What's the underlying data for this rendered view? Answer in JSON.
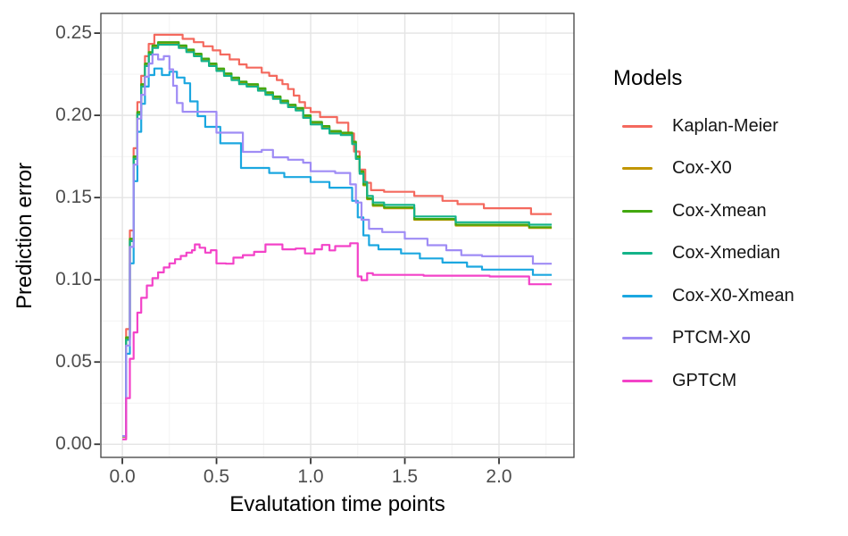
{
  "figure": {
    "background": "#FFFFFF",
    "panel_border_color": "#404040",
    "grid_major_color": "#E4E4E4",
    "grid_minor_color": "#F1F1F1",
    "tick_mark_color": "#333333",
    "tick_label_color": "#4D4D4D",
    "axis_title_color": "#000000"
  },
  "chart_data": {
    "type": "line",
    "step": true,
    "title": "",
    "xlabel": "Evalutation time points",
    "ylabel": "Prediction error",
    "legend_title": "Models",
    "legend_position": "right",
    "xlim": [
      -0.114,
      2.398
    ],
    "ylim": [
      -0.008,
      0.262
    ],
    "x_ticks": {
      "values": [
        0,
        0.5,
        1.0,
        1.5,
        2.0
      ],
      "labels": [
        "0.0",
        "0.5",
        "1.0",
        "1.5",
        "2.0"
      ]
    },
    "y_ticks": {
      "values": [
        0,
        0.05,
        0.1,
        0.15,
        0.2,
        0.25
      ],
      "labels": [
        "0.00",
        "0.05",
        "0.10",
        "0.15",
        "0.20",
        "0.25"
      ]
    },
    "x_minor": [
      0.25,
      0.75,
      1.25,
      1.75,
      2.25
    ],
    "y_minor": [
      0.025,
      0.075,
      0.125,
      0.175,
      0.225
    ],
    "series": [
      {
        "name": "Kaplan-Meier",
        "color": "#F4695E",
        "points": [
          [
            0,
            0.005
          ],
          [
            0.02,
            0.07
          ],
          [
            0.04,
            0.13
          ],
          [
            0.06,
            0.18
          ],
          [
            0.08,
            0.208
          ],
          [
            0.1,
            0.224
          ],
          [
            0.12,
            0.236
          ],
          [
            0.14,
            0.2435
          ],
          [
            0.17,
            0.249
          ],
          [
            0.32,
            0.2465
          ],
          [
            0.38,
            0.2445
          ],
          [
            0.43,
            0.242
          ],
          [
            0.48,
            0.2395
          ],
          [
            0.52,
            0.237
          ],
          [
            0.57,
            0.234
          ],
          [
            0.62,
            0.231
          ],
          [
            0.66,
            0.229
          ],
          [
            0.74,
            0.226
          ],
          [
            0.78,
            0.224
          ],
          [
            0.82,
            0.2215
          ],
          [
            0.85,
            0.219
          ],
          [
            0.88,
            0.216
          ],
          [
            0.91,
            0.212
          ],
          [
            0.94,
            0.208
          ],
          [
            0.97,
            0.2045
          ],
          [
            1.0,
            0.202
          ],
          [
            1.05,
            0.199
          ],
          [
            1.14,
            0.1955
          ],
          [
            1.2,
            0.189
          ],
          [
            1.23,
            0.178
          ],
          [
            1.26,
            0.167
          ],
          [
            1.29,
            0.159
          ],
          [
            1.32,
            0.1545
          ],
          [
            1.39,
            0.1535
          ],
          [
            1.55,
            0.151
          ],
          [
            1.7,
            0.148
          ],
          [
            1.78,
            0.146
          ],
          [
            1.92,
            0.1435
          ],
          [
            2.17,
            0.14
          ],
          [
            2.28,
            0.14
          ]
        ]
      },
      {
        "name": "Cox-X0",
        "color": "#C19601",
        "points": [
          [
            0,
            0.0045
          ],
          [
            0.02,
            0.0645
          ],
          [
            0.04,
            0.1245
          ],
          [
            0.06,
            0.1745
          ],
          [
            0.08,
            0.2015
          ],
          [
            0.1,
            0.2185
          ],
          [
            0.12,
            0.231
          ],
          [
            0.14,
            0.238
          ],
          [
            0.16,
            0.242
          ],
          [
            0.19,
            0.244
          ],
          [
            0.3,
            0.242
          ],
          [
            0.34,
            0.2395
          ],
          [
            0.38,
            0.237
          ],
          [
            0.42,
            0.234
          ],
          [
            0.46,
            0.231
          ],
          [
            0.5,
            0.228
          ],
          [
            0.54,
            0.225
          ],
          [
            0.58,
            0.2225
          ],
          [
            0.62,
            0.22
          ],
          [
            0.66,
            0.2185
          ],
          [
            0.72,
            0.216
          ],
          [
            0.76,
            0.2135
          ],
          [
            0.8,
            0.211
          ],
          [
            0.84,
            0.2085
          ],
          [
            0.88,
            0.206
          ],
          [
            0.92,
            0.204
          ],
          [
            0.96,
            0.1995
          ],
          [
            1.0,
            0.1955
          ],
          [
            1.06,
            0.193
          ],
          [
            1.1,
            0.19
          ],
          [
            1.16,
            0.189
          ],
          [
            1.22,
            0.1835
          ],
          [
            1.24,
            0.1745
          ],
          [
            1.26,
            0.1655
          ],
          [
            1.28,
            0.1575
          ],
          [
            1.3,
            0.149
          ],
          [
            1.33,
            0.145
          ],
          [
            1.39,
            0.1435
          ],
          [
            1.55,
            0.1365
          ],
          [
            1.77,
            0.133
          ],
          [
            2.16,
            0.1315
          ],
          [
            2.28,
            0.1315
          ]
        ]
      },
      {
        "name": "Cox-Xmean",
        "color": "#42A80F",
        "points": [
          [
            0,
            0.005
          ],
          [
            0.02,
            0.065
          ],
          [
            0.04,
            0.125
          ],
          [
            0.06,
            0.175
          ],
          [
            0.08,
            0.202
          ],
          [
            0.1,
            0.219
          ],
          [
            0.12,
            0.2315
          ],
          [
            0.14,
            0.2385
          ],
          [
            0.16,
            0.2425
          ],
          [
            0.19,
            0.2445
          ],
          [
            0.3,
            0.2425
          ],
          [
            0.34,
            0.24
          ],
          [
            0.38,
            0.2375
          ],
          [
            0.42,
            0.2345
          ],
          [
            0.46,
            0.2315
          ],
          [
            0.5,
            0.2285
          ],
          [
            0.54,
            0.2255
          ],
          [
            0.58,
            0.223
          ],
          [
            0.62,
            0.2205
          ],
          [
            0.66,
            0.219
          ],
          [
            0.72,
            0.2165
          ],
          [
            0.76,
            0.214
          ],
          [
            0.8,
            0.2115
          ],
          [
            0.84,
            0.209
          ],
          [
            0.88,
            0.2065
          ],
          [
            0.92,
            0.2045
          ],
          [
            0.96,
            0.2
          ],
          [
            1.0,
            0.196
          ],
          [
            1.06,
            0.1935
          ],
          [
            1.1,
            0.1905
          ],
          [
            1.16,
            0.1895
          ],
          [
            1.22,
            0.184
          ],
          [
            1.24,
            0.175
          ],
          [
            1.26,
            0.166
          ],
          [
            1.28,
            0.158
          ],
          [
            1.3,
            0.1495
          ],
          [
            1.33,
            0.1455
          ],
          [
            1.39,
            0.144
          ],
          [
            1.55,
            0.137
          ],
          [
            1.77,
            0.1335
          ],
          [
            2.16,
            0.132
          ],
          [
            2.28,
            0.132
          ]
        ]
      },
      {
        "name": "Cox-Xmedian",
        "color": "#14B389",
        "points": [
          [
            0,
            0.005
          ],
          [
            0.02,
            0.0635
          ],
          [
            0.04,
            0.1235
          ],
          [
            0.06,
            0.1735
          ],
          [
            0.08,
            0.2005
          ],
          [
            0.1,
            0.2175
          ],
          [
            0.12,
            0.23
          ],
          [
            0.14,
            0.237
          ],
          [
            0.16,
            0.241
          ],
          [
            0.19,
            0.243
          ],
          [
            0.3,
            0.241
          ],
          [
            0.34,
            0.2385
          ],
          [
            0.38,
            0.236
          ],
          [
            0.42,
            0.233
          ],
          [
            0.46,
            0.23
          ],
          [
            0.5,
            0.227
          ],
          [
            0.54,
            0.224
          ],
          [
            0.58,
            0.2215
          ],
          [
            0.62,
            0.219
          ],
          [
            0.66,
            0.2175
          ],
          [
            0.72,
            0.215
          ],
          [
            0.76,
            0.2125
          ],
          [
            0.8,
            0.21
          ],
          [
            0.84,
            0.2075
          ],
          [
            0.88,
            0.205
          ],
          [
            0.92,
            0.203
          ],
          [
            0.96,
            0.1985
          ],
          [
            1.0,
            0.1945
          ],
          [
            1.06,
            0.192
          ],
          [
            1.1,
            0.189
          ],
          [
            1.16,
            0.188
          ],
          [
            1.22,
            0.1825
          ],
          [
            1.24,
            0.1735
          ],
          [
            1.26,
            0.1645
          ],
          [
            1.28,
            0.1595
          ],
          [
            1.3,
            0.151
          ],
          [
            1.33,
            0.147
          ],
          [
            1.39,
            0.1455
          ],
          [
            1.55,
            0.1385
          ],
          [
            1.77,
            0.135
          ],
          [
            2.16,
            0.1335
          ],
          [
            2.28,
            0.1335
          ]
        ]
      },
      {
        "name": "Cox-X0-Xmean",
        "color": "#1BA7E0",
        "points": [
          [
            0,
            0.005
          ],
          [
            0.02,
            0.055
          ],
          [
            0.04,
            0.11
          ],
          [
            0.06,
            0.16
          ],
          [
            0.08,
            0.19
          ],
          [
            0.1,
            0.207
          ],
          [
            0.12,
            0.2175
          ],
          [
            0.14,
            0.2245
          ],
          [
            0.17,
            0.2285
          ],
          [
            0.21,
            0.2245
          ],
          [
            0.25,
            0.2265
          ],
          [
            0.29,
            0.223
          ],
          [
            0.33,
            0.2195
          ],
          [
            0.36,
            0.2085
          ],
          [
            0.4,
            0.1995
          ],
          [
            0.44,
            0.193
          ],
          [
            0.52,
            0.183
          ],
          [
            0.63,
            0.168
          ],
          [
            0.78,
            0.165
          ],
          [
            0.86,
            0.1625
          ],
          [
            1.0,
            0.1595
          ],
          [
            1.1,
            0.156
          ],
          [
            1.22,
            0.148
          ],
          [
            1.25,
            0.138
          ],
          [
            1.28,
            0.127
          ],
          [
            1.31,
            0.121
          ],
          [
            1.36,
            0.1185
          ],
          [
            1.48,
            0.116
          ],
          [
            1.58,
            0.113
          ],
          [
            1.7,
            0.1105
          ],
          [
            1.83,
            0.108
          ],
          [
            1.91,
            0.1062
          ],
          [
            2.18,
            0.103
          ],
          [
            2.28,
            0.103
          ]
        ]
      },
      {
        "name": "PTCM-X0",
        "color": "#9F8CF5",
        "points": [
          [
            0,
            0.005
          ],
          [
            0.02,
            0.06
          ],
          [
            0.04,
            0.12
          ],
          [
            0.06,
            0.17
          ],
          [
            0.08,
            0.198
          ],
          [
            0.1,
            0.2125
          ],
          [
            0.12,
            0.2235
          ],
          [
            0.14,
            0.2315
          ],
          [
            0.16,
            0.237
          ],
          [
            0.19,
            0.234
          ],
          [
            0.22,
            0.236
          ],
          [
            0.25,
            0.228
          ],
          [
            0.27,
            0.218
          ],
          [
            0.29,
            0.2075
          ],
          [
            0.32,
            0.2022
          ],
          [
            0.5,
            0.1895
          ],
          [
            0.64,
            0.1778
          ],
          [
            0.74,
            0.179
          ],
          [
            0.8,
            0.1745
          ],
          [
            0.88,
            0.173
          ],
          [
            0.96,
            0.1712
          ],
          [
            1.0,
            0.166
          ],
          [
            1.13,
            0.165
          ],
          [
            1.21,
            0.158
          ],
          [
            1.24,
            0.147
          ],
          [
            1.27,
            0.1365
          ],
          [
            1.31,
            0.131
          ],
          [
            1.38,
            0.129
          ],
          [
            1.5,
            0.125
          ],
          [
            1.62,
            0.121
          ],
          [
            1.72,
            0.118
          ],
          [
            1.8,
            0.115
          ],
          [
            1.91,
            0.1143
          ],
          [
            2.18,
            0.1098
          ],
          [
            2.28,
            0.1098
          ]
        ]
      },
      {
        "name": "GPTCM",
        "color": "#F342C8",
        "points": [
          [
            0,
            0.003
          ],
          [
            0.02,
            0.028
          ],
          [
            0.04,
            0.052
          ],
          [
            0.06,
            0.068
          ],
          [
            0.08,
            0.08
          ],
          [
            0.1,
            0.089
          ],
          [
            0.13,
            0.0965
          ],
          [
            0.16,
            0.101
          ],
          [
            0.19,
            0.1045
          ],
          [
            0.22,
            0.1075
          ],
          [
            0.25,
            0.11
          ],
          [
            0.28,
            0.1125
          ],
          [
            0.31,
            0.1145
          ],
          [
            0.34,
            0.1165
          ],
          [
            0.37,
            0.118
          ],
          [
            0.385,
            0.1215
          ],
          [
            0.41,
            0.1195
          ],
          [
            0.44,
            0.1165
          ],
          [
            0.47,
            0.118
          ],
          [
            0.5,
            0.11
          ],
          [
            0.55,
            0.1098
          ],
          [
            0.59,
            0.1135
          ],
          [
            0.64,
            0.115
          ],
          [
            0.7,
            0.117
          ],
          [
            0.76,
            0.1215
          ],
          [
            0.85,
            0.1185
          ],
          [
            0.92,
            0.119
          ],
          [
            0.97,
            0.116
          ],
          [
            1.02,
            0.1185
          ],
          [
            1.06,
            0.1212
          ],
          [
            1.1,
            0.1179
          ],
          [
            1.13,
            0.1205
          ],
          [
            1.21,
            0.1222
          ],
          [
            1.25,
            0.102
          ],
          [
            1.27,
            0.0998
          ],
          [
            1.3,
            0.104
          ],
          [
            1.33,
            0.103
          ],
          [
            1.6,
            0.1025
          ],
          [
            1.95,
            0.102
          ],
          [
            2.16,
            0.0973
          ],
          [
            2.28,
            0.0973
          ]
        ]
      }
    ]
  }
}
